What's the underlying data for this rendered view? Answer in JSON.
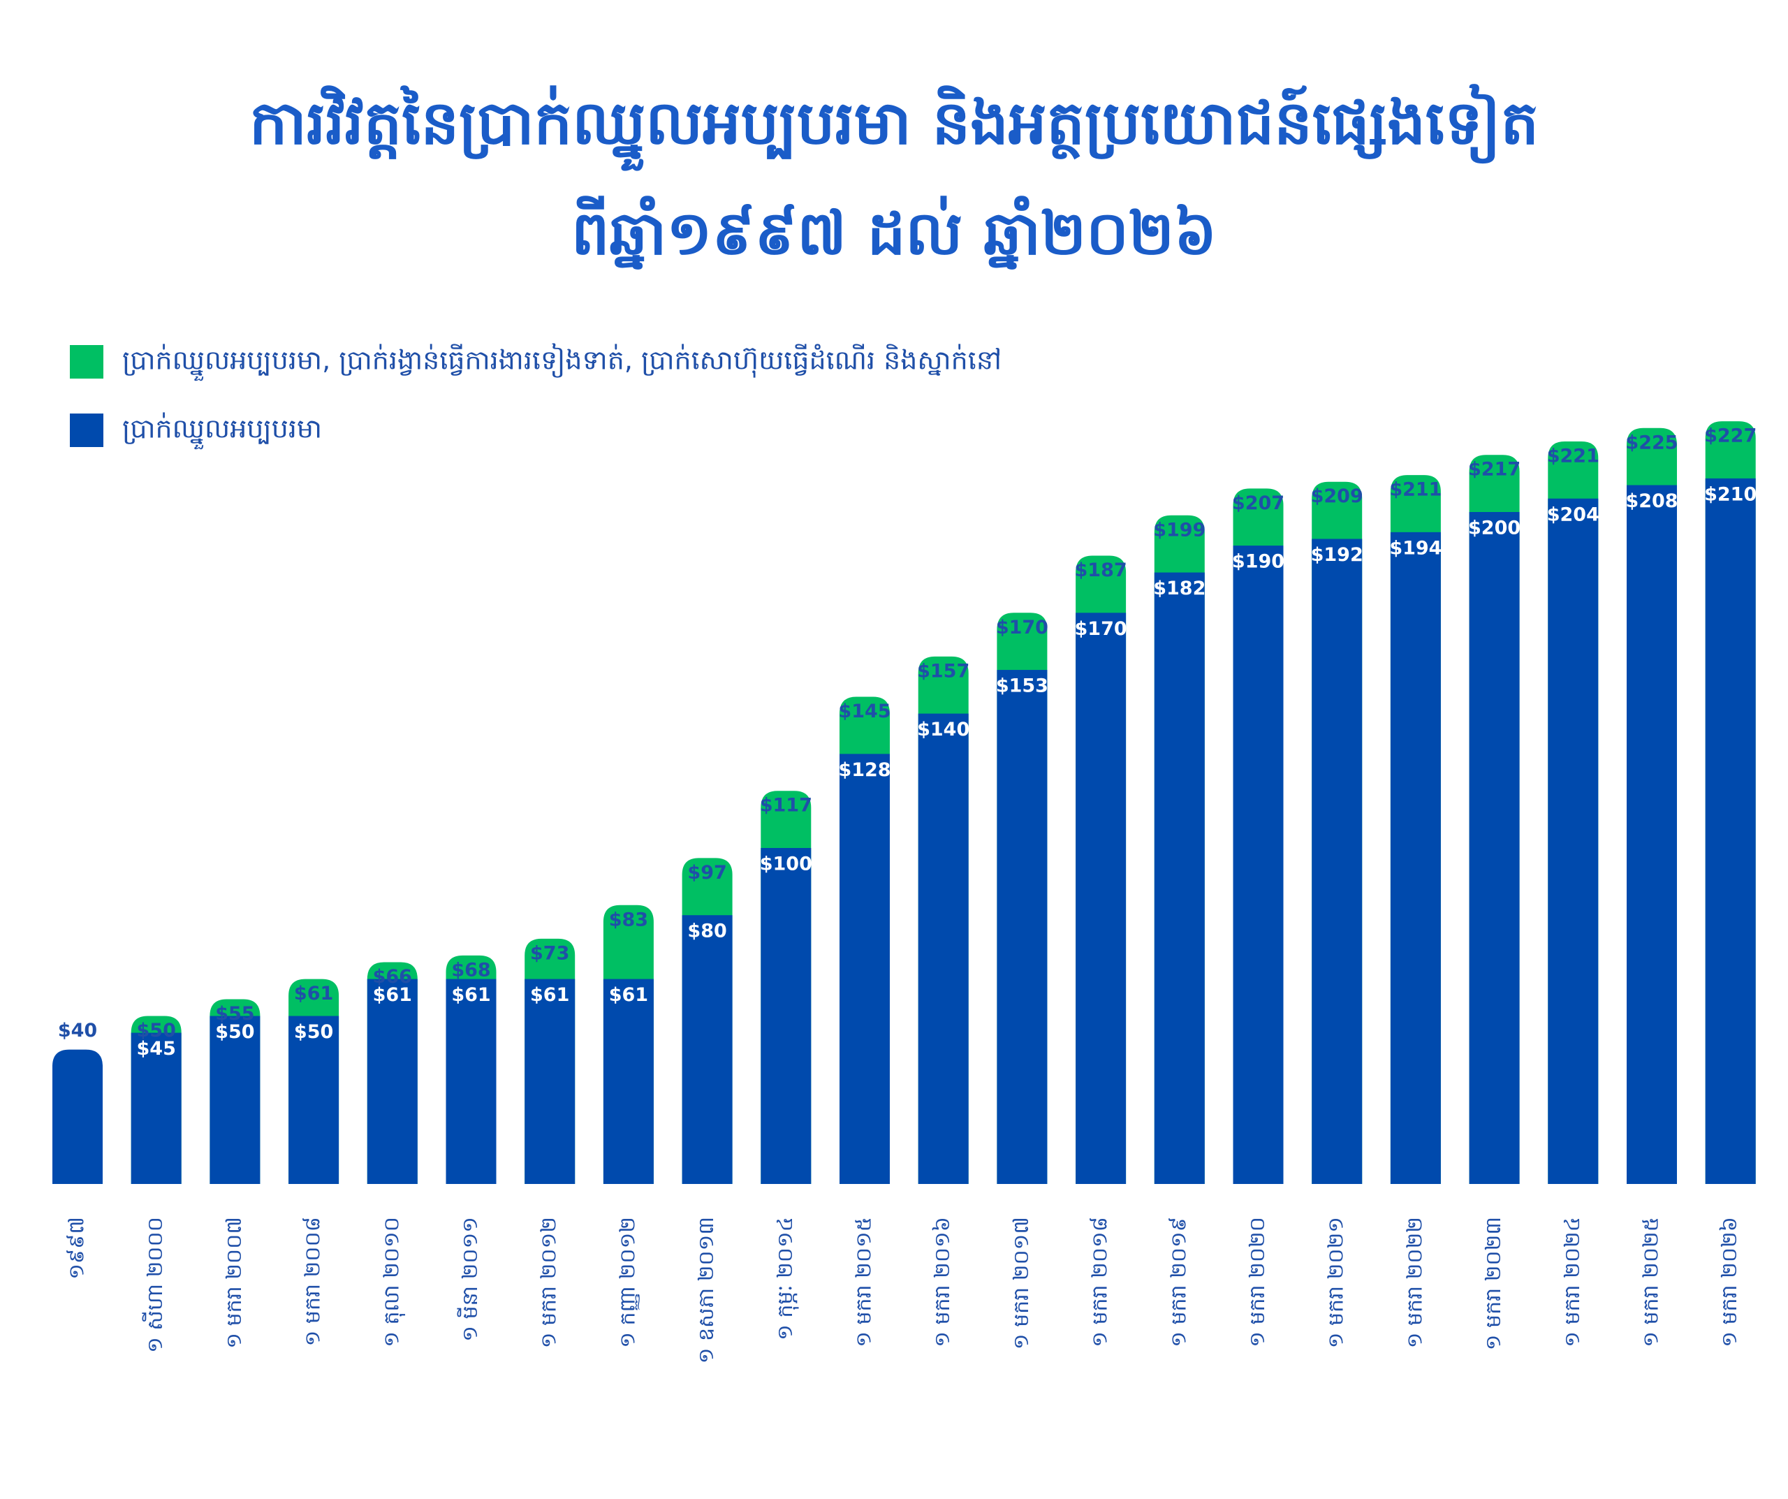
{
  "chart_data": {
    "type": "bar",
    "title": [
      "ការវិវត្តនៃប្រាក់ឈ្នួលអប្បបរមា និងអត្ថប្រយោជន៍ផ្សេងទៀត",
      "ពីឆ្នាំ១៩៩៧ ដល់ ឆ្នាំ២០២៦"
    ],
    "categories": [
      "១៩៩៧",
      "១ សីហា ២០០០",
      "១ មករា ២០០៧",
      "១ មករា ២០០៨",
      "១ តុលា ២០១០",
      "១ មីនា ២០១១",
      "១ មករា ២០១២",
      "១ កញ្ញា ២០១២",
      "១ ឧសភា ២០១៣",
      "១ កុម្ភៈ ២០១៤",
      "១ មករា ២០១៥",
      "១ មករា ២០១៦",
      "១ មករា ២០១៧",
      "១ មករា ២០១៨",
      "១ មករា ២០១៩",
      "១ មករា ២០២០",
      "១ មករា ២០២១",
      "១ មករា ២០២២",
      "១ មករា ២០២៣",
      "១ មករា ២០២៤",
      "១ មករា ២០២៥",
      "១ មករា ២០២៦"
    ],
    "series": [
      {
        "name": "ប្រាក់ឈ្នួលអប្បបរមា, ប្រាក់រង្វាន់ធ្វើការងារទៀងទាត់, ប្រាក់សោហ៊ុយធ្វើដំណើរ និងស្នាក់នៅ",
        "color": "#00bf63",
        "values": [
          null,
          50,
          55,
          61,
          66,
          68,
          73,
          83,
          97,
          117,
          145,
          157,
          170,
          187,
          199,
          207,
          209,
          211,
          217,
          221,
          225,
          227
        ],
        "value_labels": [
          null,
          "$50",
          "$55",
          "$61",
          "$66",
          "$68",
          "$73",
          "$83",
          "$97",
          "$117",
          "$145",
          "$157",
          "$170",
          "$187",
          "$199",
          "$207",
          "$209",
          "$211",
          "$217",
          "$221",
          "$225",
          "$227"
        ]
      },
      {
        "name": "ប្រាក់ឈ្នួលអប្បបរមា",
        "color": "#004aad",
        "values": [
          40,
          45,
          50,
          50,
          61,
          61,
          61,
          61,
          80,
          100,
          128,
          140,
          153,
          170,
          182,
          190,
          192,
          194,
          200,
          204,
          208,
          210
        ],
        "value_labels": [
          "$40",
          "$45",
          "$50",
          "$50",
          "$61",
          "$61",
          "$61",
          "$61",
          "$80",
          "$100",
          "$128",
          "$140",
          "$153",
          "$170",
          "$182",
          "$190",
          "$192",
          "$194",
          "$200",
          "$204",
          "$208",
          "$210"
        ]
      }
    ]
  }
}
